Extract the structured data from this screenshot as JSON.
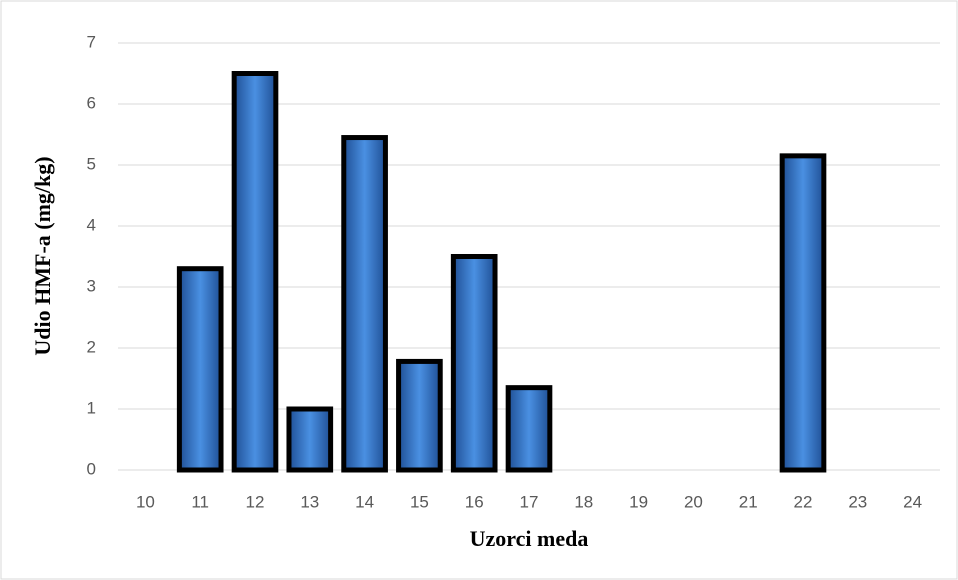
{
  "chart_data": {
    "type": "bar",
    "categories": [
      "10",
      "11",
      "12",
      "13",
      "14",
      "15",
      "16",
      "17",
      "18",
      "19",
      "20",
      "21",
      "22",
      "23",
      "24"
    ],
    "values": [
      0,
      3.3,
      6.5,
      1.0,
      5.45,
      1.78,
      3.5,
      1.35,
      0,
      0,
      0,
      0,
      5.15,
      0,
      0
    ],
    "color": "#3f7fd0",
    "ylim": [
      0,
      7
    ],
    "yticks": [
      0,
      1,
      2,
      3,
      4,
      5,
      6,
      7
    ],
    "grid": true,
    "xlabel": "Uzorci meda",
    "ylabel": "Udio HMF-a (mg/kg)"
  }
}
